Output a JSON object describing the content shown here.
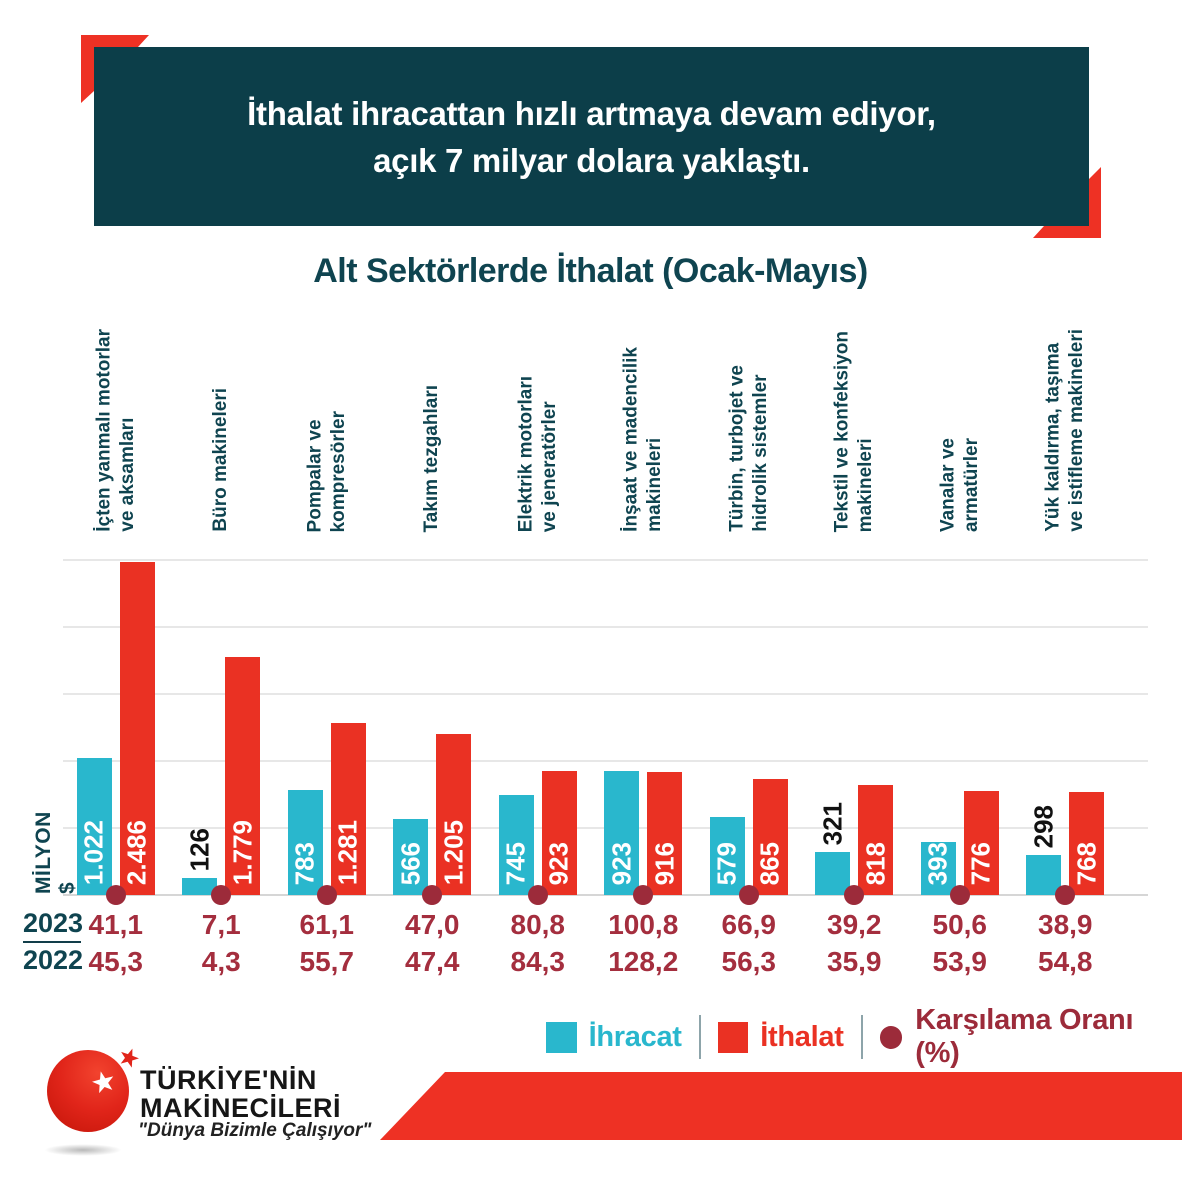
{
  "banner": {
    "line1": "İthalat ihracattan hızlı artmaya devam ediyor,",
    "line2": "açık 7 milyar dolara yaklaştı."
  },
  "chart_data": {
    "type": "bar",
    "title": "Alt Sektörlerde İthalat (Ocak-Mayıs)",
    "unit_label": "MİLYON $",
    "categories": [
      "İçten yanmalı motorlar\nve aksamları",
      "Büro makineleri",
      "Pompalar ve\nkompresörler",
      "Takım tezgahları",
      "Elektrik motorları\nve jeneratörler",
      "İnşaat ve madencilik\nmakineleri",
      "Türbin, turbojet ve\nhidrolik sistemler",
      "Tekstil ve konfeksiyon\nmakineleri",
      "Vanalar ve\narmatürler",
      "Yük kaldırma, taşıma\nve istifleme makineleri"
    ],
    "series": [
      {
        "name": "İhracat",
        "color": "#29b7cd",
        "values": [
          1022,
          126,
          783,
          566,
          745,
          923,
          579,
          321,
          393,
          298
        ],
        "labels": [
          "1.022",
          "126",
          "783",
          "566",
          "745",
          "923",
          "579",
          "321",
          "393",
          "298"
        ]
      },
      {
        "name": "İthalat",
        "color": "#ea3123",
        "values": [
          2486,
          1779,
          1281,
          1205,
          923,
          916,
          865,
          818,
          776,
          768
        ],
        "labels": [
          "2.486",
          "1.779",
          "1.281",
          "1.205",
          "923",
          "916",
          "865",
          "818",
          "776",
          "768"
        ]
      }
    ],
    "ratio": {
      "name": "Karşılama Oranı (%)",
      "color": "#9c2b3a",
      "rows": [
        {
          "year": "2023",
          "values": [
            "41,1",
            "7,1",
            "61,1",
            "47,0",
            "80,8",
            "100,8",
            "66,9",
            "39,2",
            "50,6",
            "38,9"
          ]
        },
        {
          "year": "2022",
          "values": [
            "45,3",
            "4,3",
            "55,7",
            "47,4",
            "84,3",
            "128,2",
            "56,3",
            "35,9",
            "53,9",
            "54,8"
          ]
        }
      ]
    },
    "ylim": [
      0,
      2500
    ],
    "grid_step": 500,
    "grid": "horizontal",
    "legend_position": "bottom"
  },
  "legend": {
    "items": [
      {
        "label": "İhracat",
        "color": "#29b7cd",
        "marker": "square"
      },
      {
        "label": "İthalat",
        "color": "#ea3123",
        "marker": "square"
      },
      {
        "label": "Karşılama Oranı (%)",
        "color": "#9c2b3a",
        "marker": "dot"
      }
    ]
  },
  "logo": {
    "line1": "TÜRKİYE'NİN",
    "line2": "MAKİNECİLERİ",
    "tagline": "\"Dünya Bizimle Çalışıyor\""
  },
  "colors": {
    "banner_bg": "#0c3e49",
    "accent_red": "#ee3124",
    "heading_text": "#0f4450",
    "export": "#29b7cd",
    "import": "#ea3123",
    "ratio": "#9c2b3a",
    "ratio_value_text": "#a42e3e",
    "grid": "#e7e7e7"
  }
}
